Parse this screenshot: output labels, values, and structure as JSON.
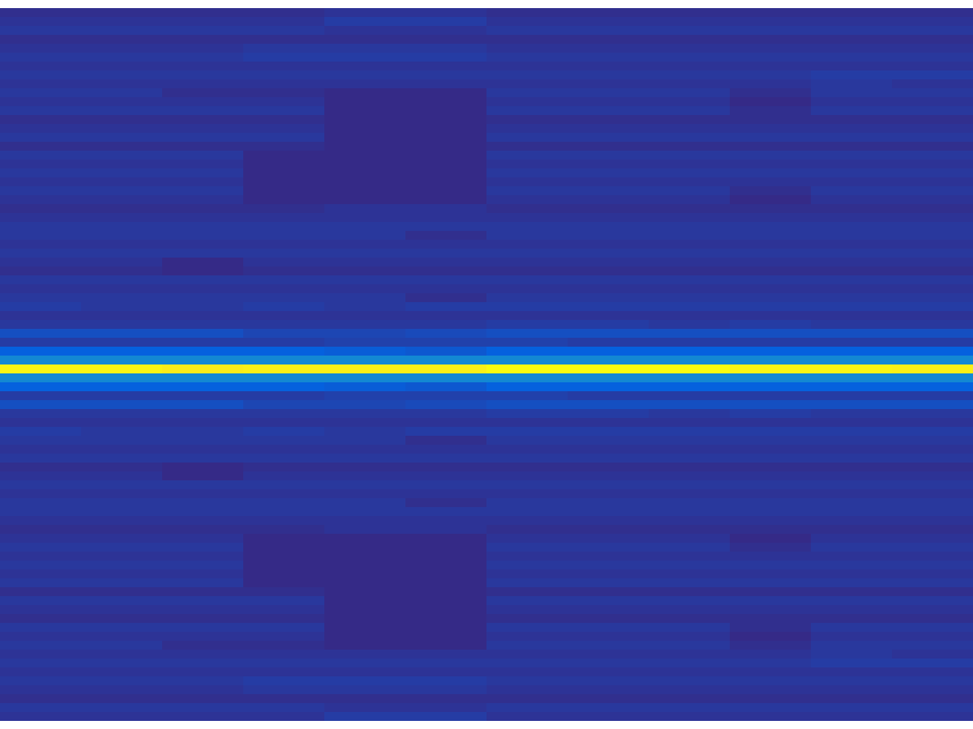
{
  "chart_data": {
    "type": "heatmap",
    "tick_labels": false,
    "cells": [
      [
        0.02,
        0.02,
        0.02,
        0.02,
        0.03,
        0.03,
        0.02,
        0.02,
        0.02,
        0.02,
        0.02,
        0.02
      ],
      [
        0.03,
        0.03,
        0.03,
        0.03,
        0.05,
        0.05,
        0.03,
        0.03,
        0.03,
        0.03,
        0.03,
        0.03
      ],
      [
        0.04,
        0.04,
        0.04,
        0.04,
        0.03,
        0.03,
        0.04,
        0.04,
        0.04,
        0.04,
        0.04,
        0.04
      ],
      [
        0.02,
        0.02,
        0.02,
        0.02,
        0.02,
        0.02,
        0.02,
        0.02,
        0.02,
        0.02,
        0.02,
        0.02
      ],
      [
        0.03,
        0.03,
        0.03,
        0.04,
        0.04,
        0.04,
        0.03,
        0.03,
        0.03,
        0.03,
        0.03,
        0.03
      ],
      [
        0.04,
        0.04,
        0.04,
        0.05,
        0.05,
        0.05,
        0.04,
        0.04,
        0.04,
        0.04,
        0.04,
        0.04
      ],
      [
        0.03,
        0.03,
        0.03,
        0.03,
        0.03,
        0.03,
        0.03,
        0.03,
        0.03,
        0.03,
        0.03,
        0.03
      ],
      [
        0.04,
        0.04,
        0.04,
        0.04,
        0.04,
        0.04,
        0.04,
        0.04,
        0.04,
        0.04,
        0.05,
        0.05
      ],
      [
        0.03,
        0.03,
        0.03,
        0.03,
        0.03,
        0.03,
        0.03,
        0.03,
        0.03,
        0.03,
        0.04,
        0.03
      ],
      [
        0.04,
        0.04,
        0.02,
        0.02,
        0.01,
        0.01,
        0.04,
        0.04,
        0.04,
        0.02,
        0.04,
        0.04
      ],
      [
        0.03,
        0.03,
        0.03,
        0.03,
        0.01,
        0.01,
        0.03,
        0.03,
        0.03,
        0.01,
        0.03,
        0.03
      ],
      [
        0.04,
        0.04,
        0.04,
        0.04,
        0.01,
        0.01,
        0.04,
        0.04,
        0.04,
        0.02,
        0.04,
        0.04
      ],
      [
        0.02,
        0.02,
        0.02,
        0.02,
        0.01,
        0.01,
        0.02,
        0.02,
        0.02,
        0.02,
        0.02,
        0.02
      ],
      [
        0.03,
        0.03,
        0.03,
        0.03,
        0.01,
        0.01,
        0.03,
        0.03,
        0.03,
        0.03,
        0.03,
        0.03
      ],
      [
        0.04,
        0.04,
        0.04,
        0.04,
        0.01,
        0.01,
        0.04,
        0.04,
        0.04,
        0.04,
        0.04,
        0.04
      ],
      [
        0.02,
        0.02,
        0.02,
        0.02,
        0.01,
        0.01,
        0.02,
        0.02,
        0.02,
        0.02,
        0.02,
        0.02
      ],
      [
        0.04,
        0.04,
        0.04,
        0.01,
        0.01,
        0.01,
        0.04,
        0.04,
        0.04,
        0.04,
        0.04,
        0.04
      ],
      [
        0.03,
        0.03,
        0.03,
        0.01,
        0.01,
        0.01,
        0.03,
        0.03,
        0.03,
        0.03,
        0.03,
        0.03
      ],
      [
        0.04,
        0.04,
        0.04,
        0.01,
        0.01,
        0.01,
        0.04,
        0.04,
        0.04,
        0.04,
        0.04,
        0.04
      ],
      [
        0.03,
        0.03,
        0.03,
        0.01,
        0.01,
        0.01,
        0.03,
        0.03,
        0.03,
        0.03,
        0.03,
        0.03
      ],
      [
        0.04,
        0.04,
        0.04,
        0.01,
        0.01,
        0.01,
        0.04,
        0.04,
        0.04,
        0.02,
        0.04,
        0.04
      ],
      [
        0.03,
        0.03,
        0.03,
        0.01,
        0.01,
        0.01,
        0.03,
        0.03,
        0.03,
        0.01,
        0.03,
        0.03
      ],
      [
        0.02,
        0.02,
        0.02,
        0.02,
        0.03,
        0.03,
        0.02,
        0.02,
        0.02,
        0.02,
        0.02,
        0.02
      ],
      [
        0.03,
        0.03,
        0.03,
        0.03,
        0.03,
        0.03,
        0.03,
        0.03,
        0.03,
        0.03,
        0.03,
        0.03
      ],
      [
        0.04,
        0.04,
        0.04,
        0.04,
        0.04,
        0.04,
        0.04,
        0.04,
        0.04,
        0.04,
        0.04,
        0.04
      ],
      [
        0.04,
        0.04,
        0.04,
        0.04,
        0.04,
        0.02,
        0.04,
        0.04,
        0.04,
        0.04,
        0.04,
        0.04
      ],
      [
        0.03,
        0.03,
        0.03,
        0.03,
        0.03,
        0.03,
        0.03,
        0.03,
        0.03,
        0.03,
        0.03,
        0.03
      ],
      [
        0.04,
        0.04,
        0.04,
        0.04,
        0.04,
        0.04,
        0.04,
        0.04,
        0.04,
        0.04,
        0.04,
        0.04
      ],
      [
        0.03,
        0.03,
        0.01,
        0.03,
        0.03,
        0.03,
        0.03,
        0.03,
        0.03,
        0.03,
        0.03,
        0.03
      ],
      [
        0.02,
        0.02,
        0.01,
        0.02,
        0.02,
        0.02,
        0.02,
        0.02,
        0.02,
        0.02,
        0.02,
        0.02
      ],
      [
        0.04,
        0.04,
        0.04,
        0.04,
        0.04,
        0.04,
        0.04,
        0.04,
        0.04,
        0.04,
        0.04,
        0.04
      ],
      [
        0.03,
        0.03,
        0.03,
        0.03,
        0.03,
        0.03,
        0.03,
        0.03,
        0.03,
        0.03,
        0.03,
        0.03
      ],
      [
        0.04,
        0.04,
        0.04,
        0.04,
        0.04,
        0.02,
        0.04,
        0.04,
        0.04,
        0.04,
        0.04,
        0.04
      ],
      [
        0.05,
        0.04,
        0.04,
        0.05,
        0.04,
        0.05,
        0.05,
        0.05,
        0.05,
        0.05,
        0.05,
        0.05
      ],
      [
        0.03,
        0.03,
        0.03,
        0.03,
        0.03,
        0.03,
        0.03,
        0.03,
        0.03,
        0.03,
        0.03,
        0.03
      ],
      [
        0.04,
        0.04,
        0.04,
        0.04,
        0.04,
        0.04,
        0.05,
        0.05,
        0.04,
        0.05,
        0.04,
        0.04
      ],
      [
        0.09,
        0.09,
        0.09,
        0.07,
        0.07,
        0.08,
        0.09,
        0.09,
        0.09,
        0.09,
        0.09,
        0.09
      ],
      [
        0.05,
        0.05,
        0.05,
        0.05,
        0.06,
        0.06,
        0.06,
        0.05,
        0.05,
        0.05,
        0.05,
        0.05
      ],
      [
        0.13,
        0.13,
        0.13,
        0.13,
        0.12,
        0.11,
        0.13,
        0.13,
        0.13,
        0.13,
        0.13,
        0.13
      ],
      [
        0.27,
        0.27,
        0.27,
        0.27,
        0.27,
        0.27,
        0.27,
        0.27,
        0.27,
        0.27,
        0.27,
        0.27
      ],
      [
        0.98,
        0.98,
        0.96,
        0.97,
        0.97,
        0.97,
        1.0,
        1.0,
        1.0,
        0.98,
        0.98,
        0.97
      ],
      [
        0.27,
        0.27,
        0.27,
        0.27,
        0.27,
        0.27,
        0.27,
        0.27,
        0.27,
        0.27,
        0.27,
        0.27
      ],
      [
        0.13,
        0.13,
        0.13,
        0.13,
        0.12,
        0.11,
        0.13,
        0.13,
        0.13,
        0.13,
        0.13,
        0.13
      ],
      [
        0.05,
        0.05,
        0.05,
        0.05,
        0.06,
        0.06,
        0.06,
        0.05,
        0.05,
        0.05,
        0.05,
        0.05
      ],
      [
        0.09,
        0.09,
        0.09,
        0.07,
        0.07,
        0.08,
        0.09,
        0.09,
        0.09,
        0.09,
        0.09,
        0.09
      ],
      [
        0.04,
        0.04,
        0.04,
        0.04,
        0.04,
        0.04,
        0.05,
        0.05,
        0.04,
        0.05,
        0.04,
        0.04
      ],
      [
        0.03,
        0.03,
        0.03,
        0.03,
        0.03,
        0.03,
        0.03,
        0.03,
        0.03,
        0.03,
        0.03,
        0.03
      ],
      [
        0.05,
        0.04,
        0.04,
        0.05,
        0.04,
        0.05,
        0.05,
        0.05,
        0.05,
        0.05,
        0.05,
        0.05
      ],
      [
        0.04,
        0.04,
        0.04,
        0.04,
        0.04,
        0.02,
        0.04,
        0.04,
        0.04,
        0.04,
        0.04,
        0.04
      ],
      [
        0.03,
        0.03,
        0.03,
        0.03,
        0.03,
        0.03,
        0.03,
        0.03,
        0.03,
        0.03,
        0.03,
        0.03
      ],
      [
        0.04,
        0.04,
        0.04,
        0.04,
        0.04,
        0.04,
        0.04,
        0.04,
        0.04,
        0.04,
        0.04,
        0.04
      ],
      [
        0.02,
        0.02,
        0.01,
        0.02,
        0.02,
        0.02,
        0.02,
        0.02,
        0.02,
        0.02,
        0.02,
        0.02
      ],
      [
        0.03,
        0.03,
        0.01,
        0.03,
        0.03,
        0.03,
        0.03,
        0.03,
        0.03,
        0.03,
        0.03,
        0.03
      ],
      [
        0.04,
        0.04,
        0.04,
        0.04,
        0.04,
        0.04,
        0.04,
        0.04,
        0.04,
        0.04,
        0.04,
        0.04
      ],
      [
        0.03,
        0.03,
        0.03,
        0.03,
        0.03,
        0.03,
        0.03,
        0.03,
        0.03,
        0.03,
        0.03,
        0.03
      ],
      [
        0.04,
        0.04,
        0.04,
        0.04,
        0.04,
        0.02,
        0.04,
        0.04,
        0.04,
        0.04,
        0.04,
        0.04
      ],
      [
        0.04,
        0.04,
        0.04,
        0.04,
        0.04,
        0.04,
        0.04,
        0.04,
        0.04,
        0.04,
        0.04,
        0.04
      ],
      [
        0.03,
        0.03,
        0.03,
        0.03,
        0.03,
        0.03,
        0.03,
        0.03,
        0.03,
        0.03,
        0.03,
        0.03
      ],
      [
        0.02,
        0.02,
        0.02,
        0.02,
        0.03,
        0.03,
        0.02,
        0.02,
        0.02,
        0.02,
        0.02,
        0.02
      ],
      [
        0.03,
        0.03,
        0.03,
        0.01,
        0.01,
        0.01,
        0.03,
        0.03,
        0.03,
        0.01,
        0.03,
        0.03
      ],
      [
        0.04,
        0.04,
        0.04,
        0.01,
        0.01,
        0.01,
        0.04,
        0.04,
        0.04,
        0.02,
        0.04,
        0.04
      ],
      [
        0.03,
        0.03,
        0.03,
        0.01,
        0.01,
        0.01,
        0.03,
        0.03,
        0.03,
        0.03,
        0.03,
        0.03
      ],
      [
        0.04,
        0.04,
        0.04,
        0.01,
        0.01,
        0.01,
        0.04,
        0.04,
        0.04,
        0.04,
        0.04,
        0.04
      ],
      [
        0.03,
        0.03,
        0.03,
        0.01,
        0.01,
        0.01,
        0.03,
        0.03,
        0.03,
        0.03,
        0.03,
        0.03
      ],
      [
        0.04,
        0.04,
        0.04,
        0.01,
        0.01,
        0.01,
        0.04,
        0.04,
        0.04,
        0.04,
        0.04,
        0.04
      ],
      [
        0.02,
        0.02,
        0.02,
        0.02,
        0.01,
        0.01,
        0.02,
        0.02,
        0.02,
        0.02,
        0.02,
        0.02
      ],
      [
        0.04,
        0.04,
        0.04,
        0.04,
        0.01,
        0.01,
        0.04,
        0.04,
        0.04,
        0.04,
        0.04,
        0.04
      ],
      [
        0.03,
        0.03,
        0.03,
        0.03,
        0.01,
        0.01,
        0.03,
        0.03,
        0.03,
        0.03,
        0.03,
        0.03
      ],
      [
        0.02,
        0.02,
        0.02,
        0.02,
        0.01,
        0.01,
        0.02,
        0.02,
        0.02,
        0.02,
        0.02,
        0.02
      ],
      [
        0.04,
        0.04,
        0.04,
        0.04,
        0.01,
        0.01,
        0.04,
        0.04,
        0.04,
        0.02,
        0.04,
        0.04
      ],
      [
        0.03,
        0.03,
        0.03,
        0.03,
        0.01,
        0.01,
        0.03,
        0.03,
        0.03,
        0.01,
        0.03,
        0.03
      ],
      [
        0.04,
        0.04,
        0.02,
        0.02,
        0.01,
        0.01,
        0.04,
        0.04,
        0.04,
        0.02,
        0.04,
        0.04
      ],
      [
        0.03,
        0.03,
        0.03,
        0.03,
        0.03,
        0.03,
        0.03,
        0.03,
        0.03,
        0.03,
        0.04,
        0.03
      ],
      [
        0.04,
        0.04,
        0.04,
        0.04,
        0.04,
        0.04,
        0.04,
        0.04,
        0.04,
        0.04,
        0.05,
        0.05
      ],
      [
        0.03,
        0.03,
        0.03,
        0.03,
        0.03,
        0.03,
        0.03,
        0.03,
        0.03,
        0.03,
        0.03,
        0.03
      ],
      [
        0.04,
        0.04,
        0.04,
        0.05,
        0.05,
        0.05,
        0.04,
        0.04,
        0.04,
        0.04,
        0.04,
        0.04
      ],
      [
        0.03,
        0.03,
        0.03,
        0.04,
        0.04,
        0.04,
        0.03,
        0.03,
        0.03,
        0.03,
        0.03,
        0.03
      ],
      [
        0.02,
        0.02,
        0.02,
        0.02,
        0.02,
        0.02,
        0.02,
        0.02,
        0.02,
        0.02,
        0.02,
        0.02
      ],
      [
        0.04,
        0.04,
        0.04,
        0.04,
        0.03,
        0.03,
        0.04,
        0.04,
        0.04,
        0.04,
        0.04,
        0.04
      ],
      [
        0.03,
        0.03,
        0.03,
        0.03,
        0.05,
        0.05,
        0.03,
        0.03,
        0.03,
        0.03,
        0.03,
        0.03
      ]
    ]
  }
}
